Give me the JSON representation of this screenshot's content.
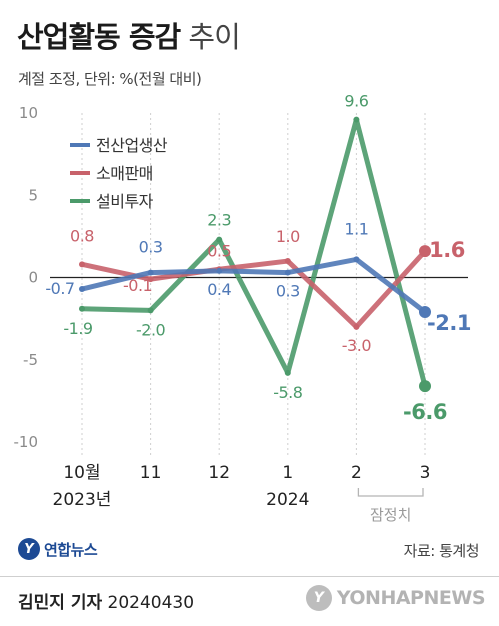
{
  "header": {
    "title_bold": "산업활동 증감",
    "title_light": "추이",
    "subtitle": "계절 조정, 단위: %(전월 대비)"
  },
  "chart_data": {
    "type": "line",
    "categories": [
      "10월",
      "11",
      "12",
      "1",
      "2",
      "3"
    ],
    "category_sublabels": [
      "2023년",
      "",
      "",
      "2024",
      "잠정치",
      ""
    ],
    "provisional_bracket": {
      "from_index": 4,
      "to_index": 5,
      "label": "잠정치"
    },
    "ylim": [
      -10,
      10
    ],
    "yticks": [
      10,
      5,
      0,
      -5,
      -10
    ],
    "grid": false,
    "legend_position": "top-left",
    "series": [
      {
        "name": "전산업생산",
        "color": "#4f78b6",
        "values": [
          -0.7,
          0.3,
          0.4,
          0.3,
          1.1,
          -2.1
        ],
        "labels": [
          "-0.7",
          "0.3",
          "0.4",
          "0.3",
          "1.1",
          "-2.1"
        ]
      },
      {
        "name": "소매판매",
        "color": "#c8626b",
        "values": [
          0.8,
          -0.1,
          0.5,
          1.0,
          -3.0,
          1.6
        ],
        "labels": [
          "0.8",
          "-0.1",
          "0.5",
          "1.0",
          "-3.0",
          "1.6"
        ]
      },
      {
        "name": "설비투자",
        "color": "#4b9a6a",
        "values": [
          -1.9,
          -2.0,
          2.3,
          -5.8,
          9.6,
          -6.6
        ],
        "labels": [
          "-1.9",
          "-2.0",
          "2.3",
          "-5.8",
          "9.6",
          "-6.6"
        ]
      }
    ]
  },
  "branding": {
    "logo_text": "연합뉴스",
    "source": "자료: 통계청",
    "author_name": "김민지 기자",
    "date": "20240430",
    "watermark": "YONHAPNEWS"
  }
}
